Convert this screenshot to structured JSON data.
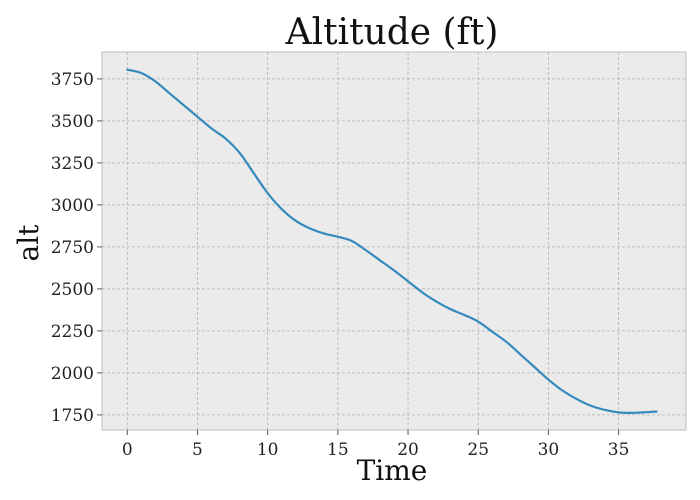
{
  "chart_data": {
    "type": "line",
    "title": "Altitude (ft)",
    "xlabel": "Time",
    "ylabel": "alt",
    "xlim": [
      -1.8,
      39.8
    ],
    "ylim": [
      1660,
      3910
    ],
    "xticks": [
      0,
      5,
      10,
      15,
      20,
      25,
      30,
      35
    ],
    "yticks": [
      1750,
      2000,
      2250,
      2500,
      2750,
      3000,
      3250,
      3500,
      3750
    ],
    "grid": true,
    "series": [
      {
        "color": "#348abd",
        "x": [
          0,
          1,
          2,
          3,
          4,
          5,
          6,
          7,
          8,
          9,
          10,
          11,
          12,
          13,
          14,
          15,
          16,
          17,
          18,
          19,
          20,
          21,
          22,
          23,
          24,
          25,
          26,
          27,
          28,
          29,
          30,
          31,
          32,
          33,
          34,
          35,
          36,
          37,
          37.7
        ],
        "y": [
          3805,
          3785,
          3735,
          3665,
          3595,
          3525,
          3455,
          3395,
          3310,
          3190,
          3070,
          2975,
          2905,
          2860,
          2830,
          2810,
          2785,
          2730,
          2670,
          2610,
          2545,
          2480,
          2425,
          2380,
          2345,
          2305,
          2245,
          2185,
          2110,
          2035,
          1960,
          1895,
          1845,
          1805,
          1780,
          1765,
          1762,
          1766,
          1770
        ]
      }
    ]
  }
}
